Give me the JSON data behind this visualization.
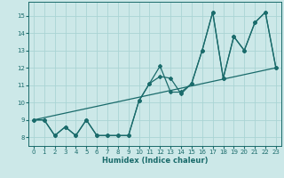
{
  "xlabel": "Humidex (Indice chaleur)",
  "ylabel": "",
  "bg_color": "#cce8e8",
  "grid_color": "#aad4d4",
  "line_color": "#1a6b6b",
  "xlim": [
    -0.5,
    23.5
  ],
  "ylim": [
    7.5,
    15.8
  ],
  "xticks": [
    0,
    1,
    2,
    3,
    4,
    5,
    6,
    7,
    8,
    9,
    10,
    11,
    12,
    13,
    14,
    15,
    16,
    17,
    18,
    19,
    20,
    21,
    22,
    23
  ],
  "yticks": [
    8,
    9,
    10,
    11,
    12,
    13,
    14,
    15
  ],
  "series1_x": [
    0,
    1,
    2,
    3,
    4,
    5,
    6,
    7,
    8,
    9,
    10,
    11,
    12,
    13,
    14,
    15,
    16,
    17,
    18,
    19,
    20,
    21,
    22,
    23
  ],
  "series1_y": [
    9.0,
    9.0,
    8.1,
    8.6,
    8.1,
    9.0,
    8.1,
    8.1,
    8.1,
    8.1,
    10.1,
    11.1,
    12.1,
    10.6,
    10.6,
    11.1,
    13.0,
    15.2,
    11.4,
    13.8,
    13.0,
    14.6,
    15.2,
    12.0
  ],
  "series2_x": [
    0,
    1,
    2,
    3,
    4,
    5,
    6,
    7,
    8,
    9,
    10,
    11,
    12,
    13,
    14,
    15,
    16,
    17,
    18,
    19,
    20,
    21,
    22,
    23
  ],
  "series2_y": [
    9.0,
    9.0,
    8.1,
    8.6,
    8.1,
    9.0,
    8.1,
    8.1,
    8.1,
    8.1,
    10.1,
    11.1,
    11.5,
    11.4,
    10.5,
    11.1,
    13.0,
    15.2,
    11.4,
    13.8,
    13.0,
    14.6,
    15.2,
    12.0
  ],
  "trend_x": [
    0,
    23
  ],
  "trend_y": [
    9.0,
    12.0
  ]
}
